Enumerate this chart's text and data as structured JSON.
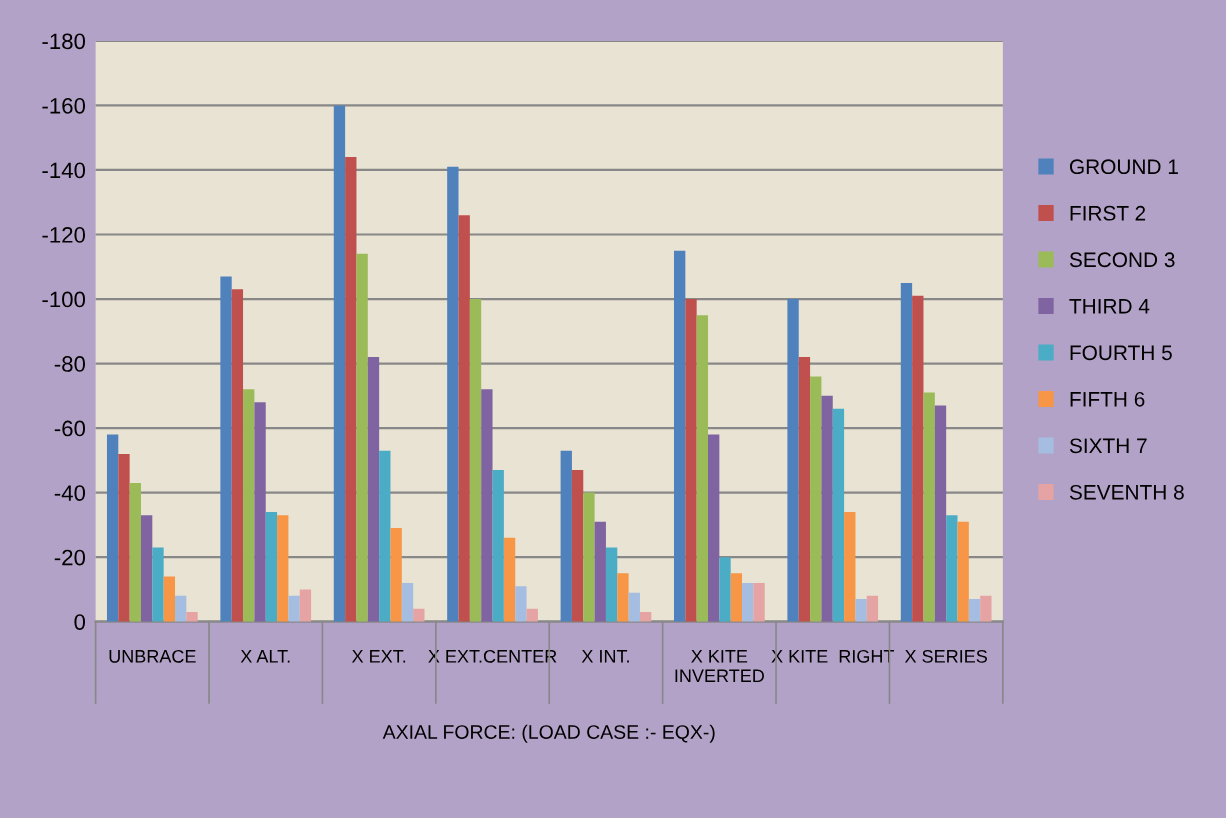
{
  "chart_data": {
    "type": "bar",
    "xlabel": "AXIAL FORCE: (LOAD CASE :- EQX-)",
    "categories": [
      "UNBRACE",
      "X ALT.",
      "X EXT.",
      "X EXT.CENTER",
      "X INT.",
      "X KITE\nINVERTED",
      "X KITE  RIGHT",
      "X SERIES"
    ],
    "series": [
      {
        "name": "GROUND 1",
        "color": "#4f81bd",
        "values": [
          -58,
          -107,
          -160,
          -141,
          -53,
          -115,
          -100,
          -105
        ]
      },
      {
        "name": "FIRST 2",
        "color": "#c0504d",
        "values": [
          -52,
          -103,
          -144,
          -126,
          -47,
          -100,
          -82,
          -101
        ]
      },
      {
        "name": "SECOND 3",
        "color": "#9bbb59",
        "values": [
          -43,
          -72,
          -114,
          -100,
          -40,
          -95,
          -76,
          -71
        ]
      },
      {
        "name": "THIRD 4",
        "color": "#8064a2",
        "values": [
          -33,
          -68,
          -82,
          -72,
          -31,
          -58,
          -70,
          -67
        ]
      },
      {
        "name": "FOURTH 5",
        "color": "#4bacc6",
        "values": [
          -23,
          -34,
          -53,
          -47,
          -23,
          -20,
          -66,
          -33
        ]
      },
      {
        "name": "FIFTH 6",
        "color": "#f79646",
        "values": [
          -14,
          -33,
          -29,
          -26,
          -15,
          -15,
          -34,
          -31
        ]
      },
      {
        "name": "SIXTH 7",
        "color": "#a5bde0",
        "values": [
          -8,
          -8,
          -12,
          -11,
          -9,
          -12,
          -7,
          -7
        ]
      },
      {
        "name": "SEVENTH 8",
        "color": "#e6a3a3",
        "values": [
          -3,
          -10,
          -4,
          -4,
          -3,
          -12,
          -8,
          -8
        ]
      }
    ],
    "ylim": [
      0,
      -180
    ],
    "yticks": [
      0,
      -20,
      -40,
      -60,
      -80,
      -100,
      -120,
      -140,
      -160,
      -180
    ],
    "grid": "y",
    "legend": "right"
  }
}
